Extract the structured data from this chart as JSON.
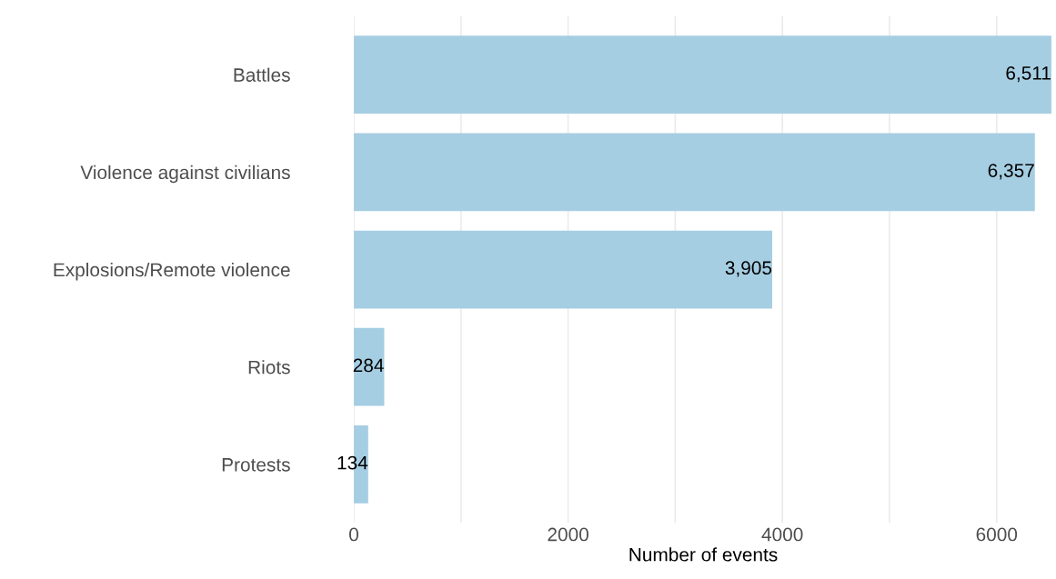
{
  "chart_data": {
    "type": "bar",
    "orientation": "horizontal",
    "xlabel": "Number of events",
    "categories": [
      "Battles",
      "Violence against civilians",
      "Explosions/Remote violence",
      "Riots",
      "Protests"
    ],
    "values": [
      6511,
      6357,
      3905,
      284,
      134
    ],
    "value_labels": [
      "6,511",
      "6,357",
      "3,905",
      "284",
      "134"
    ],
    "color": "#a6cee3",
    "xlim": [
      0,
      6520
    ],
    "xticks": [
      0,
      {
        "value": 1000,
        "label": null
      },
      2000,
      {
        "value": 3000,
        "label": null
      },
      4000,
      {
        "value": 5000,
        "label": null
      },
      6000
    ],
    "grid": "x"
  }
}
